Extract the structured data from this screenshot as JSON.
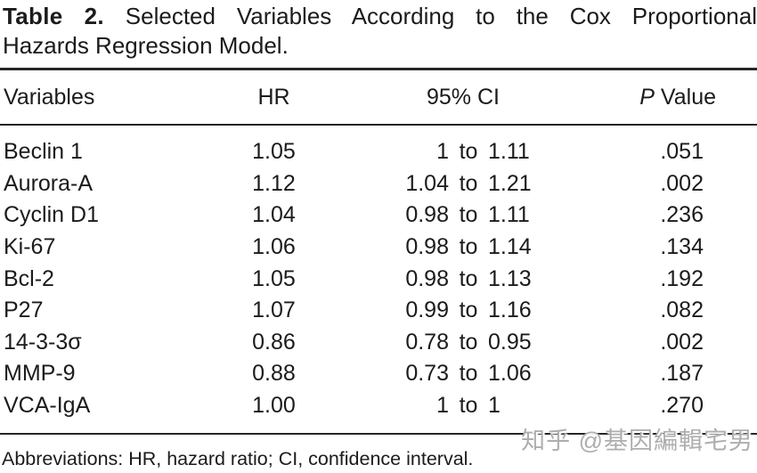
{
  "title": {
    "label": "Table 2.",
    "line1_rest": "Selected Variables According to the Cox Proportional",
    "line2": "Hazards Regression Model."
  },
  "table": {
    "columns": [
      {
        "id": "variables",
        "label": "Variables"
      },
      {
        "id": "hr",
        "label": "HR"
      },
      {
        "id": "ci",
        "label": "95% CI"
      },
      {
        "id": "p",
        "label_italic": "P",
        "label_rest": " Value"
      }
    ],
    "rows": [
      {
        "variable": "Beclin 1",
        "hr": "1.05",
        "ci": "1 to 1.11",
        "p": ".051"
      },
      {
        "variable": "Aurora-A",
        "hr": "1.12",
        "ci": "1.04 to 1.21",
        "p": ".002"
      },
      {
        "variable": "Cyclin D1",
        "hr": "1.04",
        "ci": "0.98 to 1.11",
        "p": ".236"
      },
      {
        "variable": "Ki-67",
        "hr": "1.06",
        "ci": "0.98 to 1.14",
        "p": ".134"
      },
      {
        "variable": "Bcl-2",
        "hr": "1.05",
        "ci": "0.98 to 1.13",
        "p": ".192"
      },
      {
        "variable": "P27",
        "hr": "1.07",
        "ci": "0.99 to 1.16",
        "p": ".082"
      },
      {
        "variable": "14-3-3σ",
        "hr": "0.86",
        "ci": "0.78 to 0.95",
        "p": ".002"
      },
      {
        "variable": "MMP-9",
        "hr": "0.88",
        "ci": "0.73 to 1.06",
        "p": ".187"
      },
      {
        "variable": "VCA-IgA",
        "hr": "1.00",
        "ci": "1 to 1",
        "p": ".270"
      }
    ]
  },
  "footnote": "Abbreviations: HR, hazard ratio; CI, confidence interval.",
  "watermark": "知乎 @基因編輯宅男",
  "colors": {
    "text": "#1b1b1b",
    "rule": "#262626",
    "watermark": "#aeaeae",
    "background": "#ffffff"
  }
}
